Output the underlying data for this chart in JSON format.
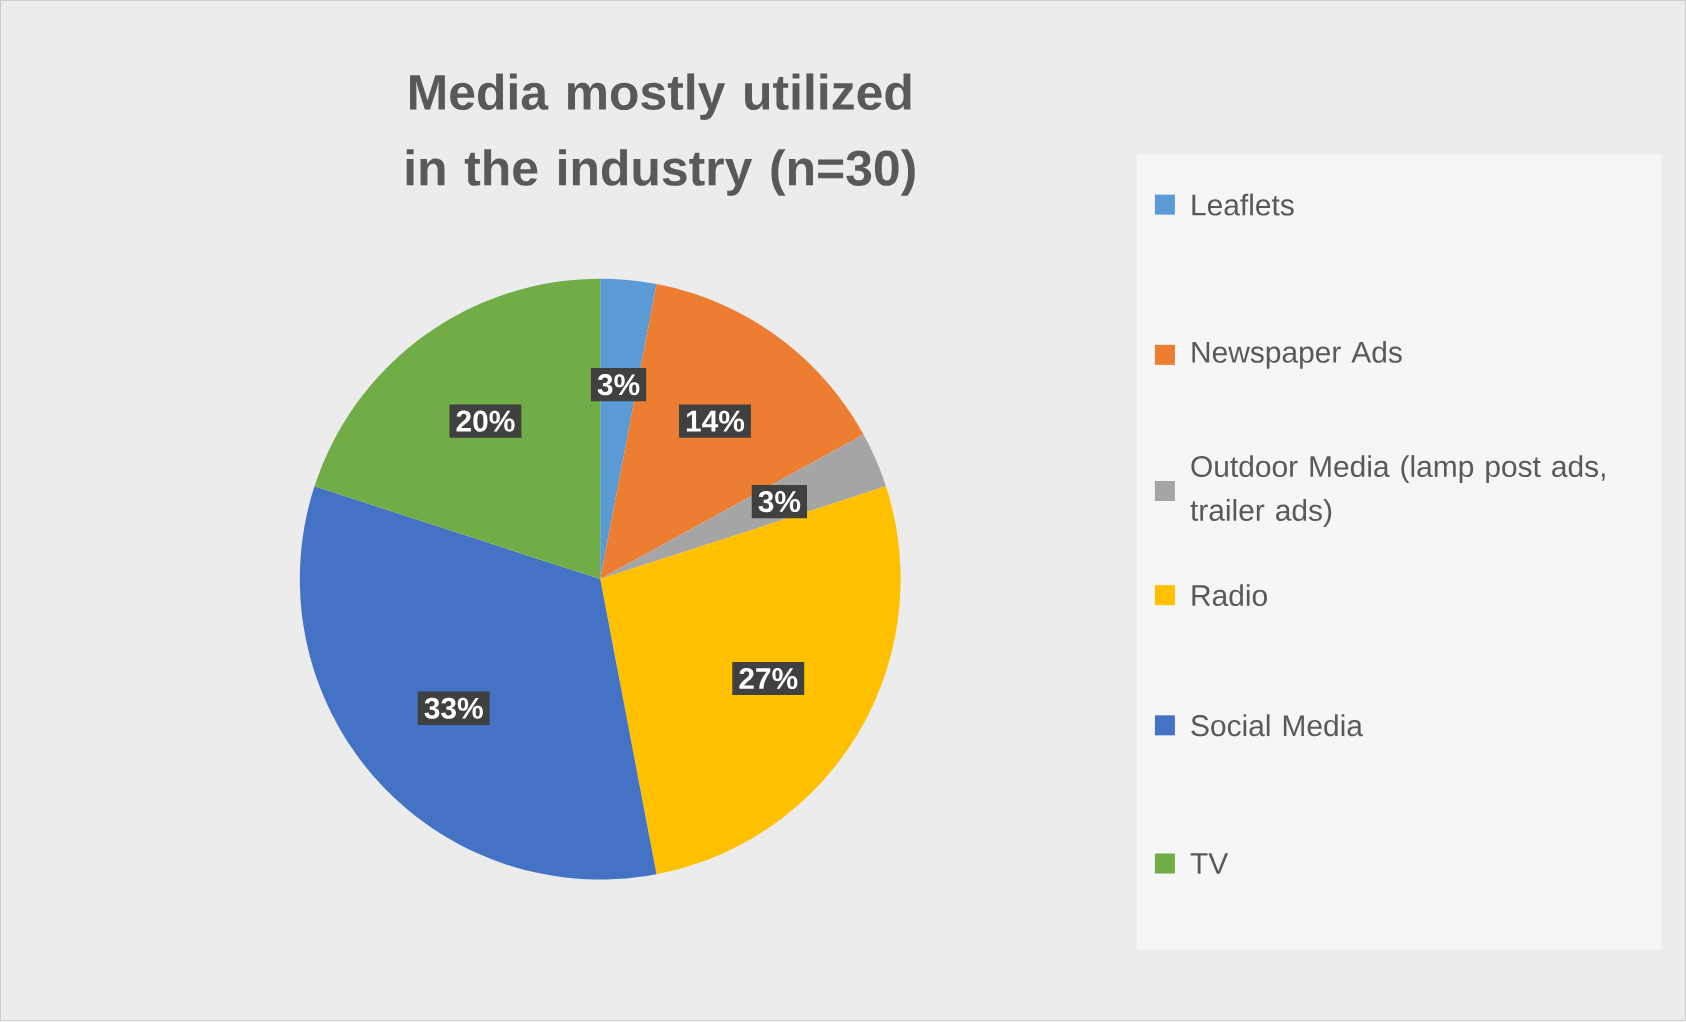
{
  "chart_data": {
    "type": "pie",
    "title": "Media mostly utilized in the industry (n=30)",
    "categories": [
      "Leaflets",
      "Newspaper Ads",
      "Outdoor Media (lamp post ads, trailer ads)",
      "Radio",
      "Social Media",
      "TV"
    ],
    "values": [
      3,
      14,
      3,
      27,
      33,
      20
    ],
    "value_labels": [
      "3%",
      "14%",
      "3%",
      "27%",
      "33%",
      "20%"
    ],
    "colors": [
      "#5b9bd5",
      "#ed7d31",
      "#a5a5a5",
      "#ffc000",
      "#4472c4",
      "#70ad47"
    ],
    "legend": "right"
  }
}
